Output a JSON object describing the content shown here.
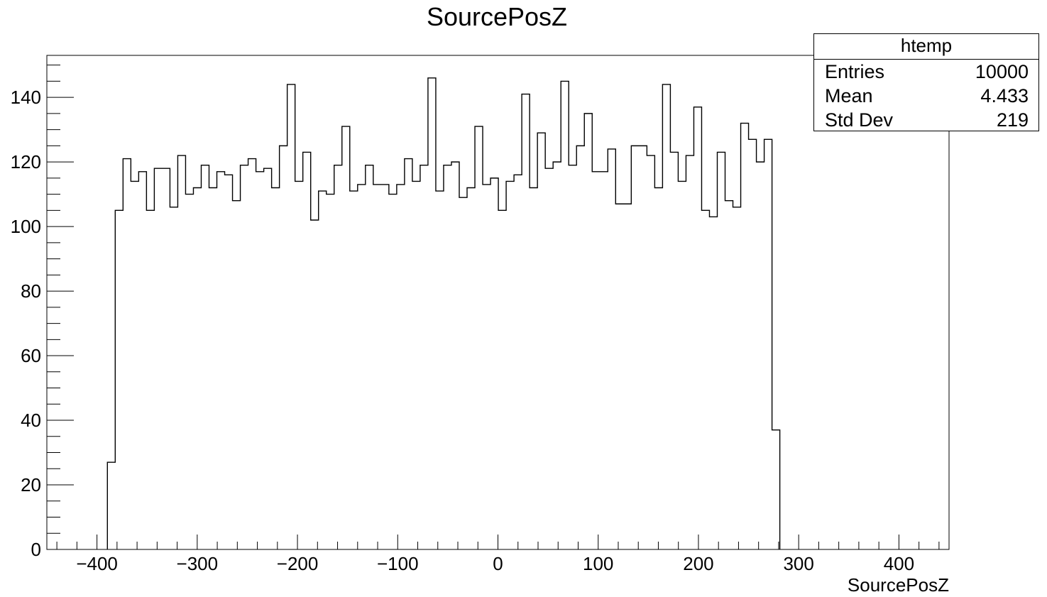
{
  "chart_data": {
    "type": "histogram",
    "title": "SourcePosZ",
    "xlabel": "SourcePosZ",
    "ylabel": "",
    "xlim": [
      -450,
      450
    ],
    "ylim": [
      0,
      153
    ],
    "bin_width": 7.8,
    "bins_x_start": -389.6,
    "values": [
      27,
      105,
      121,
      114,
      117,
      105,
      118,
      118,
      106,
      122,
      110,
      112,
      119,
      112,
      117,
      116,
      108,
      119,
      121,
      117,
      118,
      112,
      125,
      144,
      114,
      123,
      102,
      111,
      110,
      119,
      131,
      111,
      113,
      119,
      113,
      113,
      110,
      113,
      121,
      114,
      119,
      146,
      111,
      119,
      120,
      109,
      112,
      131,
      113,
      115,
      105,
      114,
      116,
      141,
      112,
      129,
      118,
      120,
      145,
      119,
      125,
      135,
      117,
      117,
      124,
      107,
      107,
      125,
      125,
      122,
      112,
      144,
      123,
      114,
      122,
      137,
      105,
      103,
      123,
      108,
      106,
      132,
      127,
      120,
      127,
      37
    ],
    "x_ticks": [
      -400,
      -300,
      -200,
      -100,
      0,
      100,
      200,
      300,
      400
    ],
    "x_tick_labels": [
      "−400",
      "−300",
      "−200",
      "−100",
      "0",
      "100",
      "200",
      "300",
      "400"
    ],
    "y_ticks": [
      0,
      20,
      40,
      60,
      80,
      100,
      120,
      140
    ],
    "y_tick_labels": [
      "0",
      "20",
      "40",
      "60",
      "80",
      "100",
      "120",
      "140"
    ]
  },
  "stats": {
    "title": "htemp",
    "rows": [
      {
        "label": "Entries",
        "value": "10000"
      },
      {
        "label": "Mean",
        "value": "4.433"
      },
      {
        "label": "Std Dev",
        "value": "219"
      }
    ]
  }
}
